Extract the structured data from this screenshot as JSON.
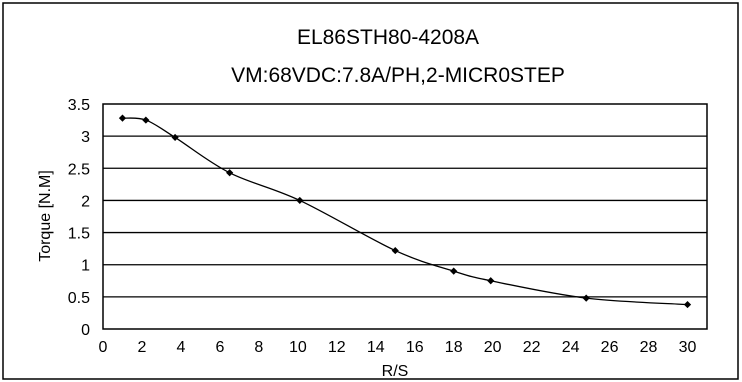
{
  "chart_data": {
    "type": "line",
    "title": "EL86STH80-4208A",
    "subtitle": "VM:68VDC:7.8A/PH,2-MICR0STEP",
    "xlabel": "R/S",
    "ylabel": "Torque [N.M]",
    "xlim": [
      0,
      31
    ],
    "ylim": [
      0,
      3.5
    ],
    "x_ticks": [
      0,
      2,
      4,
      6,
      8,
      10,
      12,
      14,
      16,
      18,
      20,
      22,
      24,
      26,
      28,
      30
    ],
    "x_tick_labels": [
      "0",
      "2",
      "4",
      "6",
      "8",
      "10",
      "12",
      "14",
      "16",
      "18",
      "20",
      "22",
      "24",
      "26",
      "28",
      "30"
    ],
    "y_ticks": [
      0,
      0.5,
      1,
      1.5,
      2,
      2.5,
      3,
      3.5
    ],
    "y_tick_labels": [
      "0",
      "0.5",
      "1",
      "1.5",
      "2",
      "2.5",
      "3",
      "3.5"
    ],
    "grid": "horizontal",
    "marker": "diamond",
    "series": [
      {
        "x": [
          1,
          2.2,
          3.7,
          6.5,
          10.1,
          15,
          18,
          19.9,
          24.8,
          30
        ],
        "y": [
          3.28,
          3.25,
          2.98,
          2.43,
          2.0,
          1.22,
          0.9,
          0.75,
          0.48,
          0.38
        ]
      }
    ]
  }
}
